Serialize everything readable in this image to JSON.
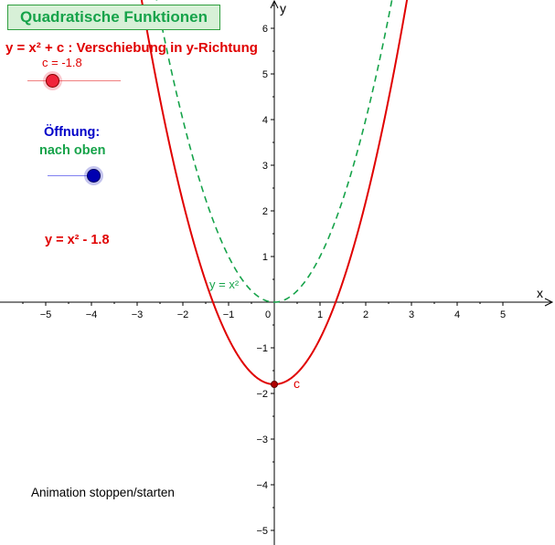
{
  "title": "Quadratische Funktionen",
  "headline": "y = x² + c : Verschiebung in y-Richtung",
  "slider_c": {
    "label": "c = -1.8",
    "value": -1.8,
    "min": -2.2,
    "max": 2.2
  },
  "oeffnung": {
    "label": "Öffnung:",
    "value_text": "nach oben",
    "slider_value": 1
  },
  "current_function": "y = x² - 1.8",
  "animation_button": "Animation stoppen/starten",
  "graph": {
    "x_axis_label": "x",
    "y_axis_label": "y",
    "x_ticks": [
      "−5",
      "−4",
      "−3",
      "−2",
      "−1",
      "0",
      "1",
      "2",
      "3",
      "4",
      "5"
    ],
    "y_ticks": [
      "6",
      "5",
      "4",
      "3",
      "2",
      "1",
      "−1",
      "−2",
      "−3",
      "−4",
      "−5"
    ],
    "parabola_label": "y = x²",
    "point_label": "c",
    "c": -1.8,
    "colors": {
      "shifted": "#e00000",
      "base": "#16a34a",
      "axis": "#000000"
    }
  }
}
